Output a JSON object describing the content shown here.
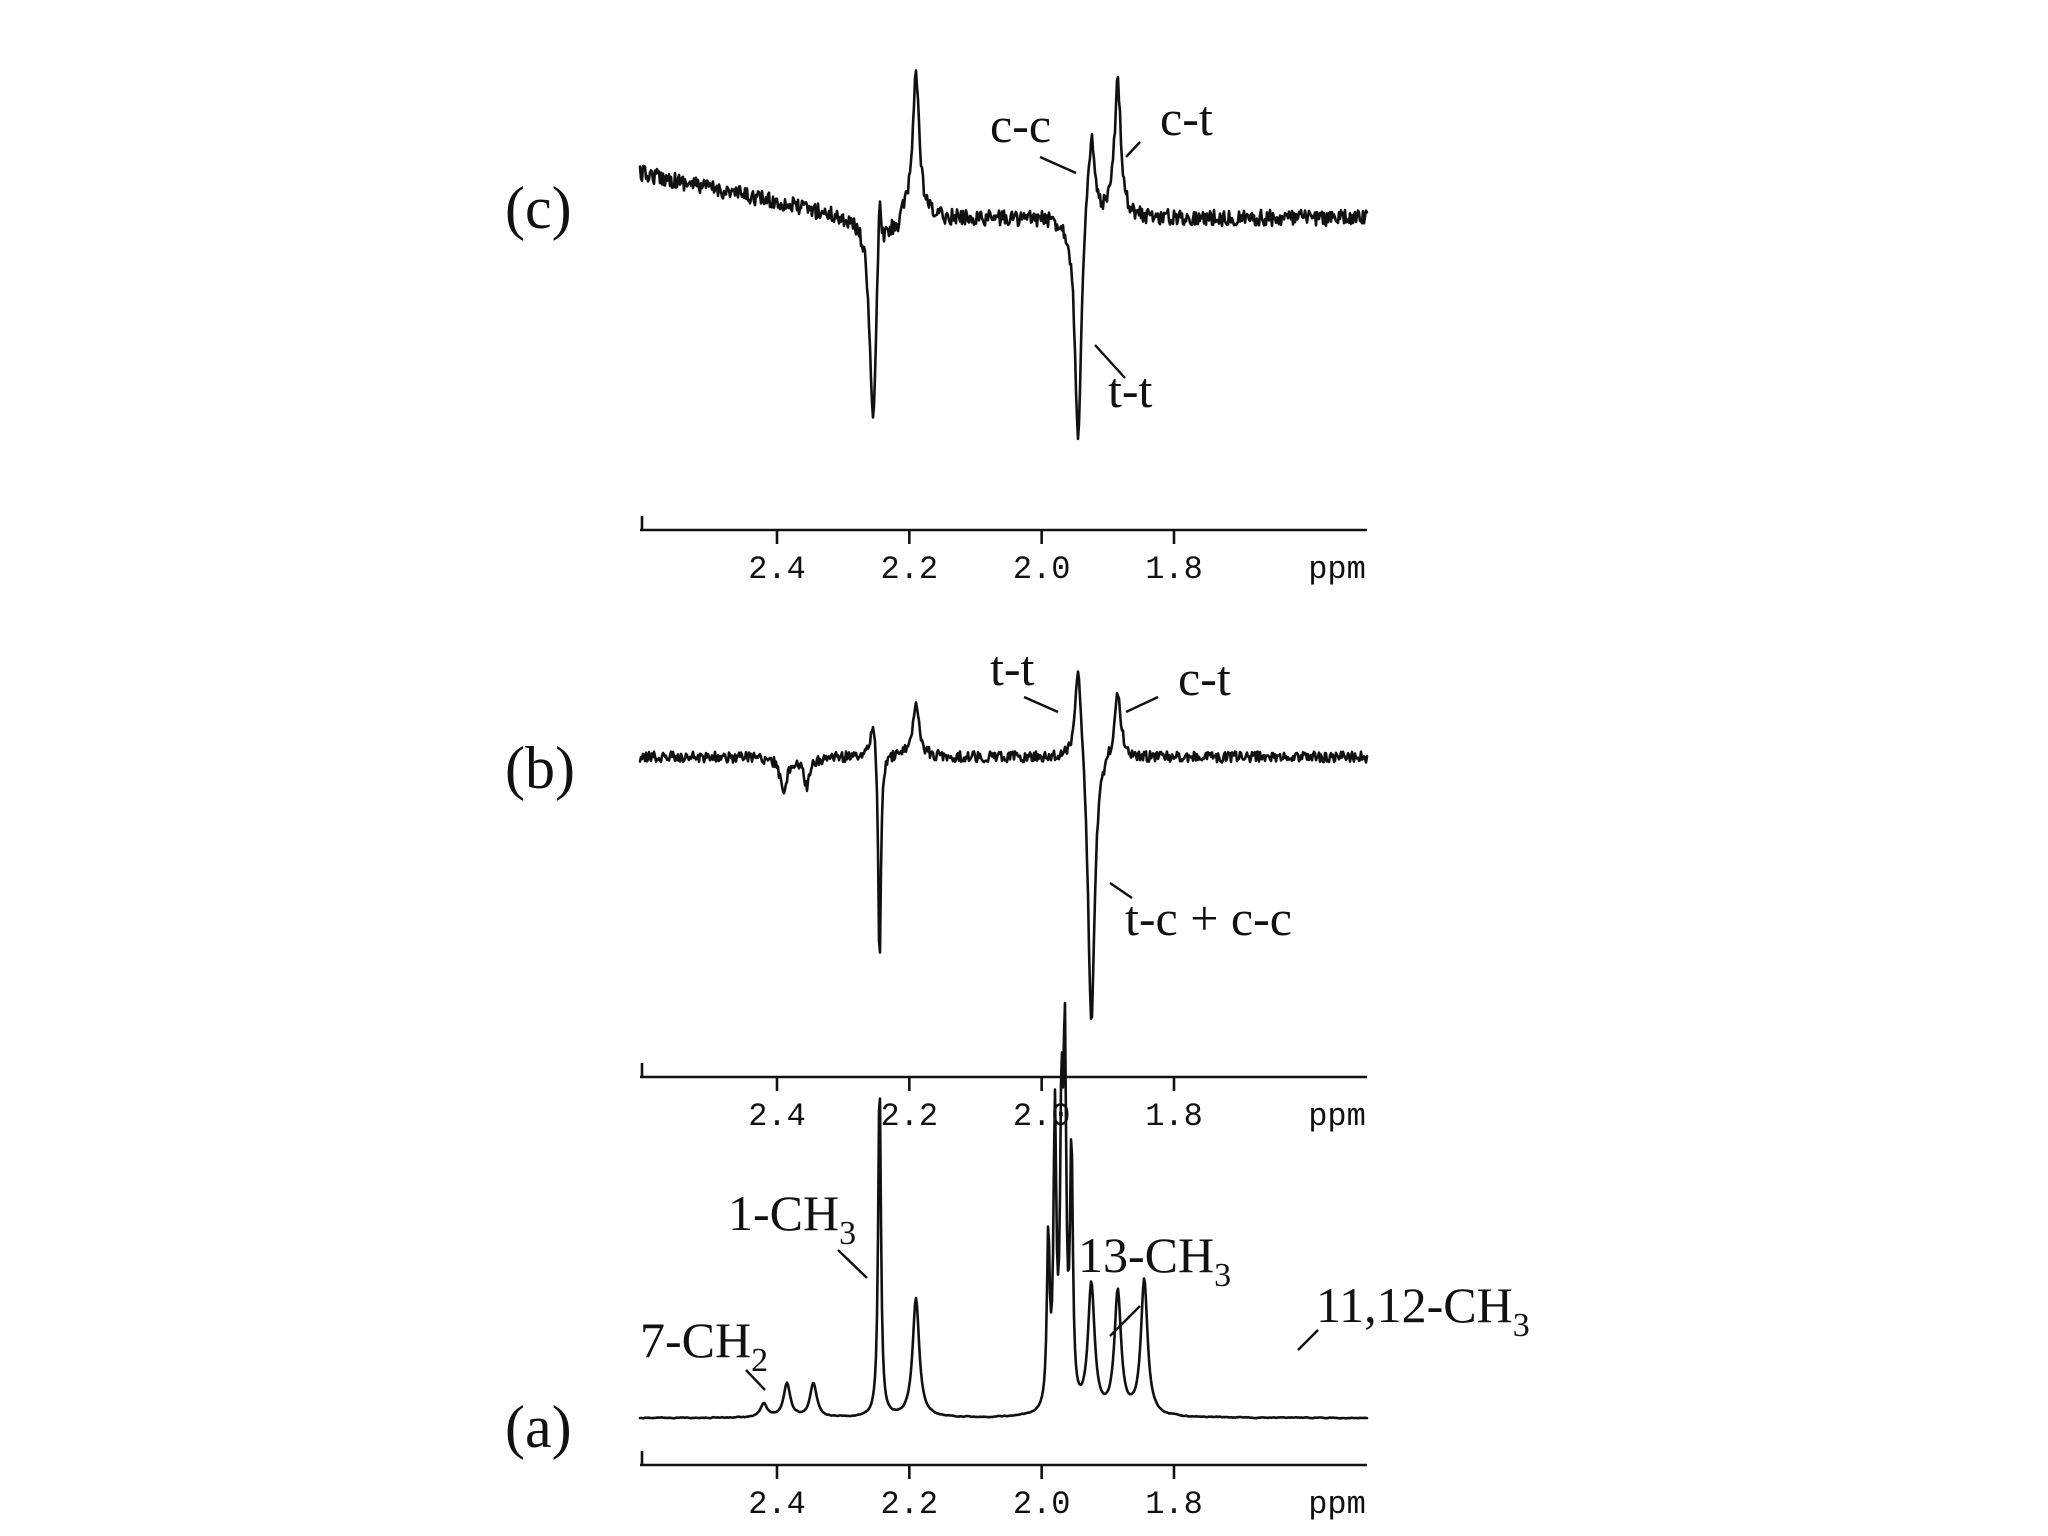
{
  "chart_data": [
    {
      "type": "line",
      "panel": "(c)",
      "x_unit": "ppm",
      "x_ticks": [
        2.4,
        2.2,
        2.0,
        1.8
      ],
      "xlim": [
        2.6,
        1.7
      ],
      "x_reversed": true,
      "peaks": [
        {
          "x": 2.255,
          "y": -0.85
        },
        {
          "x": 2.245,
          "y": 0.32
        },
        {
          "x": 2.19,
          "y": 0.92
        },
        {
          "x": 1.945,
          "y": -0.95
        },
        {
          "x": 1.925,
          "y": 0.55
        },
        {
          "x": 1.885,
          "y": 0.85
        }
      ],
      "annotations": [
        {
          "text": "c-c",
          "x": 1.925
        },
        {
          "text": "c-t",
          "x": 1.885
        },
        {
          "text": "t-t",
          "x": 1.945
        }
      ]
    },
    {
      "type": "line",
      "panel": "(b)",
      "x_unit": "ppm",
      "x_ticks": [
        2.4,
        2.2,
        2.0,
        1.8
      ],
      "xlim": [
        2.6,
        1.7
      ],
      "x_reversed": true,
      "peaks": [
        {
          "x": 2.39,
          "y": -0.13
        },
        {
          "x": 2.355,
          "y": -0.1
        },
        {
          "x": 2.255,
          "y": 0.2
        },
        {
          "x": 2.245,
          "y": -0.8
        },
        {
          "x": 2.19,
          "y": 0.35
        },
        {
          "x": 1.945,
          "y": 0.6
        },
        {
          "x": 1.925,
          "y": -1.0
        },
        {
          "x": 1.885,
          "y": 0.4
        }
      ],
      "annotations": [
        {
          "text": "t-t",
          "x": 1.945
        },
        {
          "text": "c-t",
          "x": 1.885
        },
        {
          "text": "t-c + c-c",
          "x": 1.925
        }
      ]
    },
    {
      "type": "line",
      "panel": "(a)",
      "x_unit": "ppm",
      "x_ticks": [
        2.4,
        2.2,
        2.0,
        1.8
      ],
      "xlim": [
        2.6,
        1.7
      ],
      "x_reversed": true,
      "peaks": [
        {
          "x": 2.42,
          "y": 0.04
        },
        {
          "x": 2.385,
          "y": 0.1
        },
        {
          "x": 2.345,
          "y": 0.1
        },
        {
          "x": 2.245,
          "y": 1.0
        },
        {
          "x": 2.19,
          "y": 0.35
        },
        {
          "x": 1.99,
          "y": 0.5
        },
        {
          "x": 1.98,
          "y": 0.85
        },
        {
          "x": 1.97,
          "y": 0.8
        },
        {
          "x": 1.965,
          "y": 1.0
        },
        {
          "x": 1.955,
          "y": 0.75
        },
        {
          "x": 1.925,
          "y": 0.38
        },
        {
          "x": 1.885,
          "y": 0.36
        },
        {
          "x": 1.845,
          "y": 0.4
        }
      ],
      "annotations": [
        {
          "text": "7-CH",
          "sub": "2",
          "x": 2.42
        },
        {
          "text": "1-CH",
          "sub": "3",
          "x": 2.245
        },
        {
          "text": "13-CH",
          "sub": "3",
          "x": 1.925
        },
        {
          "text": "11,12-CH",
          "sub": "3",
          "x": 1.865
        }
      ]
    }
  ]
}
